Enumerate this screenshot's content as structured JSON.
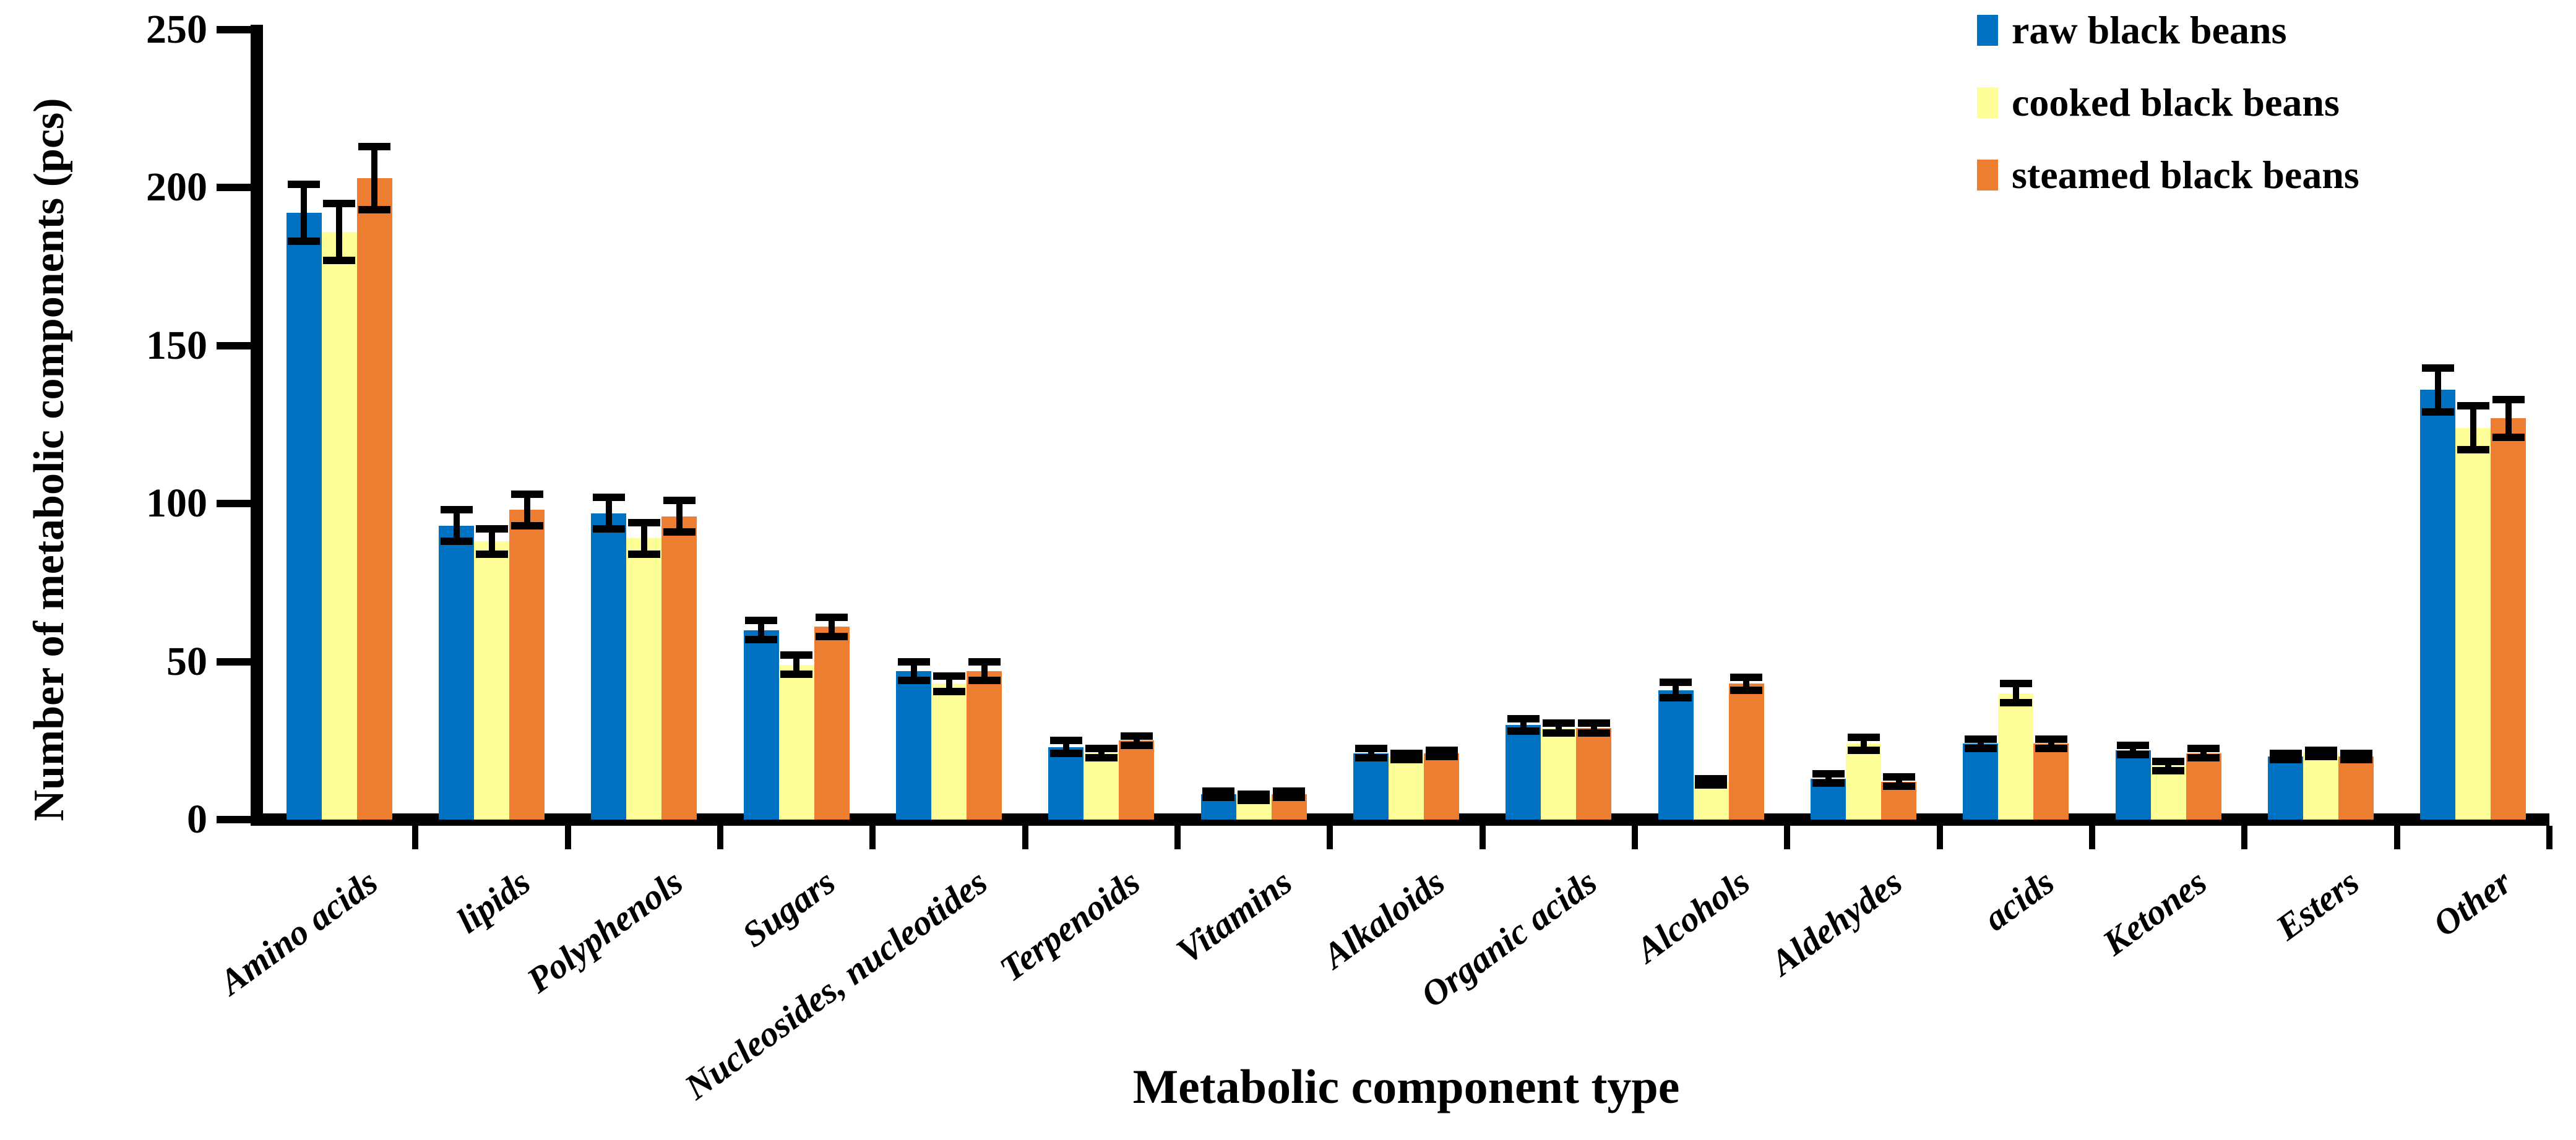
{
  "chart_data": {
    "type": "bar",
    "title": "",
    "xlabel": "Metabolic component type",
    "ylabel": "Number of metabolic components (pcs)",
    "ylim": [
      0,
      250
    ],
    "yticks": [
      0,
      50,
      100,
      150,
      200,
      250
    ],
    "grid": false,
    "legend_position": "top-right",
    "error_bars": true,
    "categories": [
      "Amino acids",
      "lipids",
      "Polyphenols",
      "Sugars",
      "Nucleosides, nucleotides",
      "Terpenoids",
      "Vitamins",
      "Alkaloids",
      "Organic acids",
      "Alcohols",
      "Aldehydes",
      "acids",
      "Ketones",
      "Esters",
      "Other"
    ],
    "series": [
      {
        "name": "raw black beans",
        "color": "#0070C0",
        "values": [
          192,
          93,
          97,
          60,
          47,
          23,
          8,
          21,
          30,
          41,
          13,
          24,
          22,
          20,
          136
        ],
        "errors": [
          9,
          5,
          5,
          3,
          3,
          2,
          1,
          1.5,
          2,
          2.5,
          1.5,
          1.5,
          1.5,
          1,
          7
        ]
      },
      {
        "name": "cooked black beans",
        "color": "#FFFF99",
        "values": [
          186,
          88,
          89,
          49,
          43,
          21,
          7,
          20,
          29,
          12,
          24,
          40,
          17,
          21,
          124
        ],
        "errors": [
          9,
          4,
          5,
          3,
          2.5,
          1.5,
          1,
          1,
          1.5,
          1,
          2,
          3,
          1.5,
          1,
          7
        ]
      },
      {
        "name": "steamed black beans",
        "color": "#ED7D31",
        "values": [
          203,
          98,
          96,
          61,
          47,
          25,
          8,
          21,
          29,
          43,
          12,
          24,
          21,
          20,
          127
        ],
        "errors": [
          10,
          5,
          5,
          3,
          3,
          1.5,
          1,
          1,
          1.5,
          2,
          1.5,
          1.5,
          1.5,
          1,
          6
        ]
      }
    ]
  }
}
